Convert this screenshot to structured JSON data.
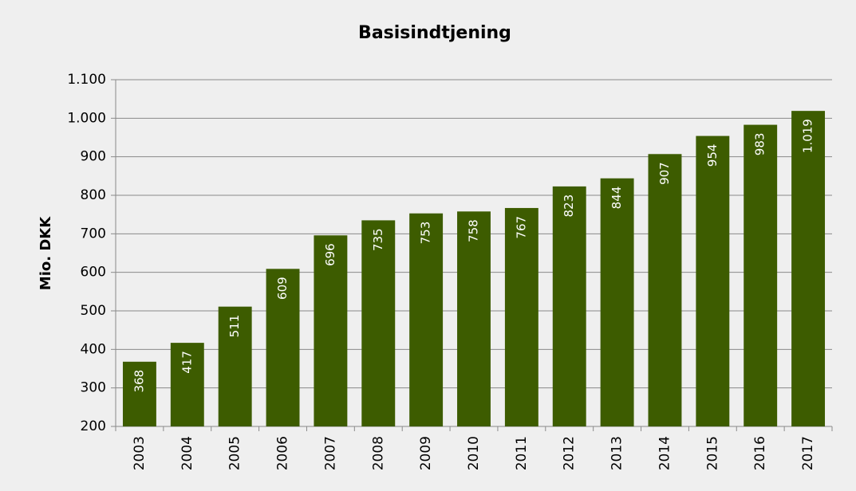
{
  "chart_data": {
    "type": "bar",
    "title": "Basisindtjening",
    "y_label": "Mio. DKK",
    "categories": [
      "2003",
      "2004",
      "2005",
      "2006",
      "2007",
      "2008",
      "2009",
      "2010",
      "2011",
      "2012",
      "2013",
      "2014",
      "2015",
      "2016",
      "2017"
    ],
    "values": [
      368,
      417,
      511,
      609,
      696,
      735,
      753,
      758,
      767,
      823,
      844,
      907,
      954,
      983,
      1019
    ],
    "value_labels": [
      "368",
      "417",
      "511",
      "609",
      "696",
      "735",
      "753",
      "758",
      "767",
      "823",
      "844",
      "907",
      "954",
      "983",
      "1.019"
    ],
    "color": "#3d5c00",
    "ylim": [
      200,
      1100
    ],
    "yticks": [
      200,
      300,
      400,
      500,
      600,
      700,
      800,
      900,
      {
        "value": 1000,
        "label": "1.000"
      },
      {
        "value": 1100,
        "label": "1.100"
      }
    ],
    "grid": true
  }
}
